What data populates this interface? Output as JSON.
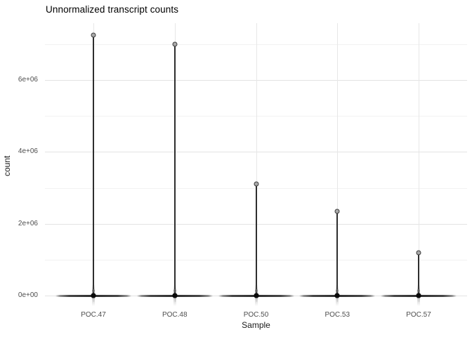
{
  "title": "Unnormalized transcript counts",
  "axes": {
    "x": {
      "label": "Sample",
      "categories": [
        "POC.47",
        "POC.48",
        "POC.50",
        "POC.53",
        "POC.57"
      ]
    },
    "y": {
      "label": "count",
      "major_ticks": [
        {
          "value": 0,
          "label": "0e+00"
        },
        {
          "value": 2000000,
          "label": "2e+06"
        },
        {
          "value": 4000000,
          "label": "4e+06"
        },
        {
          "value": 6000000,
          "label": "6e+06"
        }
      ],
      "minor_ticks": [
        1000000,
        3000000,
        5000000,
        7000000
      ]
    }
  },
  "chart_data": {
    "type": "boxplot",
    "title": "Unnormalized transcript counts",
    "xlabel": "Sample",
    "ylabel": "count",
    "categories": [
      "POC.47",
      "POC.48",
      "POC.50",
      "POC.53",
      "POC.57"
    ],
    "ylim": [
      0,
      7600000
    ],
    "grid": "on",
    "legend": "none",
    "boxes": [
      {
        "sample": "POC.47",
        "median": 0,
        "q1": 0,
        "q3": 20000,
        "max_outlier": 7250000,
        "near_zero_cluster": true
      },
      {
        "sample": "POC.48",
        "median": 0,
        "q1": 0,
        "q3": 20000,
        "max_outlier": 7000000,
        "near_zero_cluster": true
      },
      {
        "sample": "POC.50",
        "median": 0,
        "q1": 0,
        "q3": 20000,
        "max_outlier": 3100000,
        "near_zero_cluster": true
      },
      {
        "sample": "POC.53",
        "median": 0,
        "q1": 0,
        "q3": 20000,
        "max_outlier": 2350000,
        "near_zero_cluster": true
      },
      {
        "sample": "POC.57",
        "median": 0,
        "q1": 0,
        "q3": 20000,
        "max_outlier": 1200000,
        "near_zero_cluster": true
      }
    ]
  },
  "colors": {
    "background": "#ffffff",
    "grid_major": "#e3e3e3",
    "grid_minor": "#f2f2f2",
    "grid_vertical": "#e7e7e7",
    "whisker": "#2e2e2e",
    "max_point_fill": "#a8a8a8",
    "max_point_stroke": "#3c3c3c",
    "zero_dot": "#0a0a0a",
    "tick_text": "#4d4d4d",
    "title_text": "#000000"
  }
}
